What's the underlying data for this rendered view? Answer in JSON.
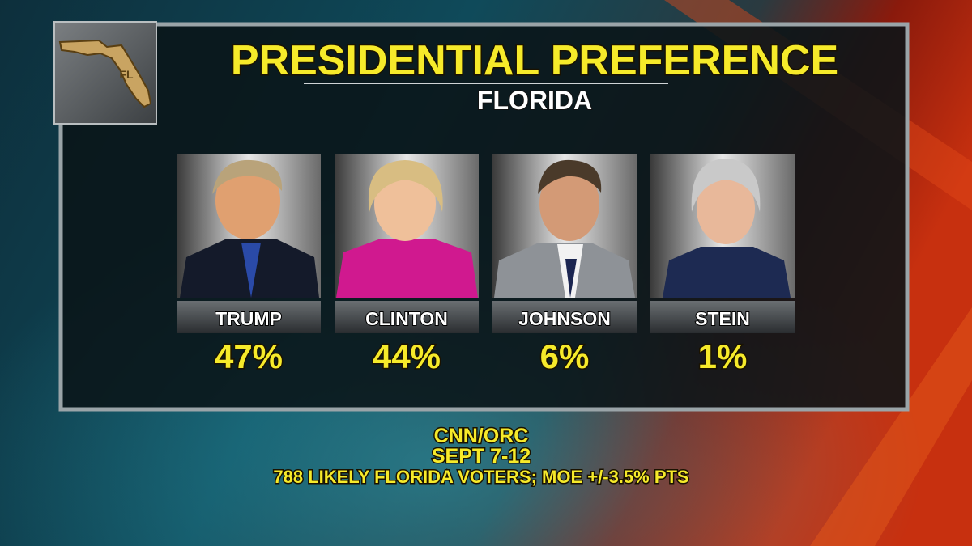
{
  "logo": {
    "label": "FL"
  },
  "header": {
    "title": "PRESIDENTIAL PREFERENCE",
    "subtitle": "FLORIDA"
  },
  "candidates": [
    {
      "name": "TRUMP",
      "share": "47%"
    },
    {
      "name": "CLINTON",
      "share": "44%"
    },
    {
      "name": "JOHNSON",
      "share": "6%"
    },
    {
      "name": "STEIN",
      "share": "1%"
    }
  ],
  "footer": {
    "source": "CNN/ORC",
    "dates": "SEPT 7-12",
    "sample": "788 LIKELY FLORIDA VOTERS; MOE +/-3.5% PTS"
  }
}
